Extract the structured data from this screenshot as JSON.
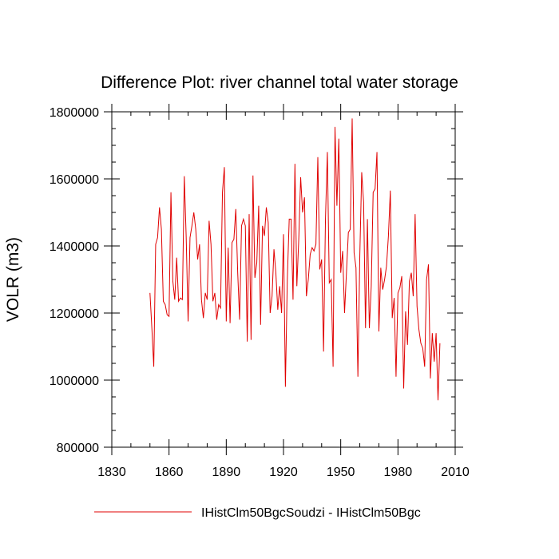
{
  "chart_data": {
    "type": "line",
    "title": "Difference Plot: river channel total water storage",
    "xlabel": "",
    "ylabel": "VOLR  (m3)",
    "xlim": [
      1830,
      2010
    ],
    "ylim": [
      800000,
      1800000
    ],
    "x_ticks": [
      1830,
      1860,
      1890,
      1920,
      1950,
      1980,
      2010
    ],
    "y_ticks": [
      800000,
      1000000,
      1200000,
      1400000,
      1600000,
      1800000
    ],
    "x_minor_step": 10,
    "y_minor_step": 50000,
    "grid": false,
    "legend_position": "bottom",
    "series": [
      {
        "name": "IHistClm50BgcSoudzi - IHistClm50Bgc",
        "color": "#e00000",
        "x_start": 1850,
        "x_step": 1,
        "values": [
          1260000,
          1155000,
          1040000,
          1405000,
          1425000,
          1515000,
          1450000,
          1235000,
          1225000,
          1195000,
          1190000,
          1560000,
          1295000,
          1240000,
          1365000,
          1235000,
          1245000,
          1240000,
          1608000,
          1425000,
          1175000,
          1425000,
          1460000,
          1500000,
          1450000,
          1360000,
          1405000,
          1240000,
          1185000,
          1260000,
          1240000,
          1475000,
          1405000,
          1235000,
          1260000,
          1180000,
          1225000,
          1215000,
          1560000,
          1635000,
          1175000,
          1395000,
          1170000,
          1410000,
          1420000,
          1510000,
          1320000,
          1180000,
          1460000,
          1480000,
          1460000,
          1115000,
          1495000,
          1120000,
          1610000,
          1305000,
          1350000,
          1520000,
          1165000,
          1460000,
          1430000,
          1515000,
          1470000,
          1200000,
          1250000,
          1390000,
          1320000,
          1210000,
          1280000,
          1200000,
          1435000,
          980000,
          1300000,
          1480000,
          1480000,
          1240000,
          1645000,
          1280000,
          1420000,
          1605000,
          1500000,
          1545000,
          1250000,
          1300000,
          1375000,
          1395000,
          1385000,
          1405000,
          1665000,
          1330000,
          1360000,
          1085000,
          1480000,
          1680000,
          1290000,
          1300000,
          1040000,
          1755000,
          1520000,
          1720000,
          1320000,
          1385000,
          1200000,
          1320000,
          1440000,
          1450000,
          1780000,
          1380000,
          1335000,
          1010000,
          1370000,
          1620000,
          1530000,
          1155000,
          1480000,
          1155000,
          1280000,
          1560000,
          1570000,
          1680000,
          1145000,
          1335000,
          1270000,
          1300000,
          1340000,
          1430000,
          1565000,
          1185000,
          1245000,
          1010000,
          1260000,
          1275000,
          1310000,
          975000,
          1205000,
          1105000,
          1295000,
          1320000,
          1250000,
          1495000,
          1220000,
          1150000,
          1110000,
          1095000,
          1040000,
          1300000,
          1345000,
          1005000,
          1140000,
          1055000,
          1140000,
          940000,
          1110000
        ]
      }
    ]
  }
}
